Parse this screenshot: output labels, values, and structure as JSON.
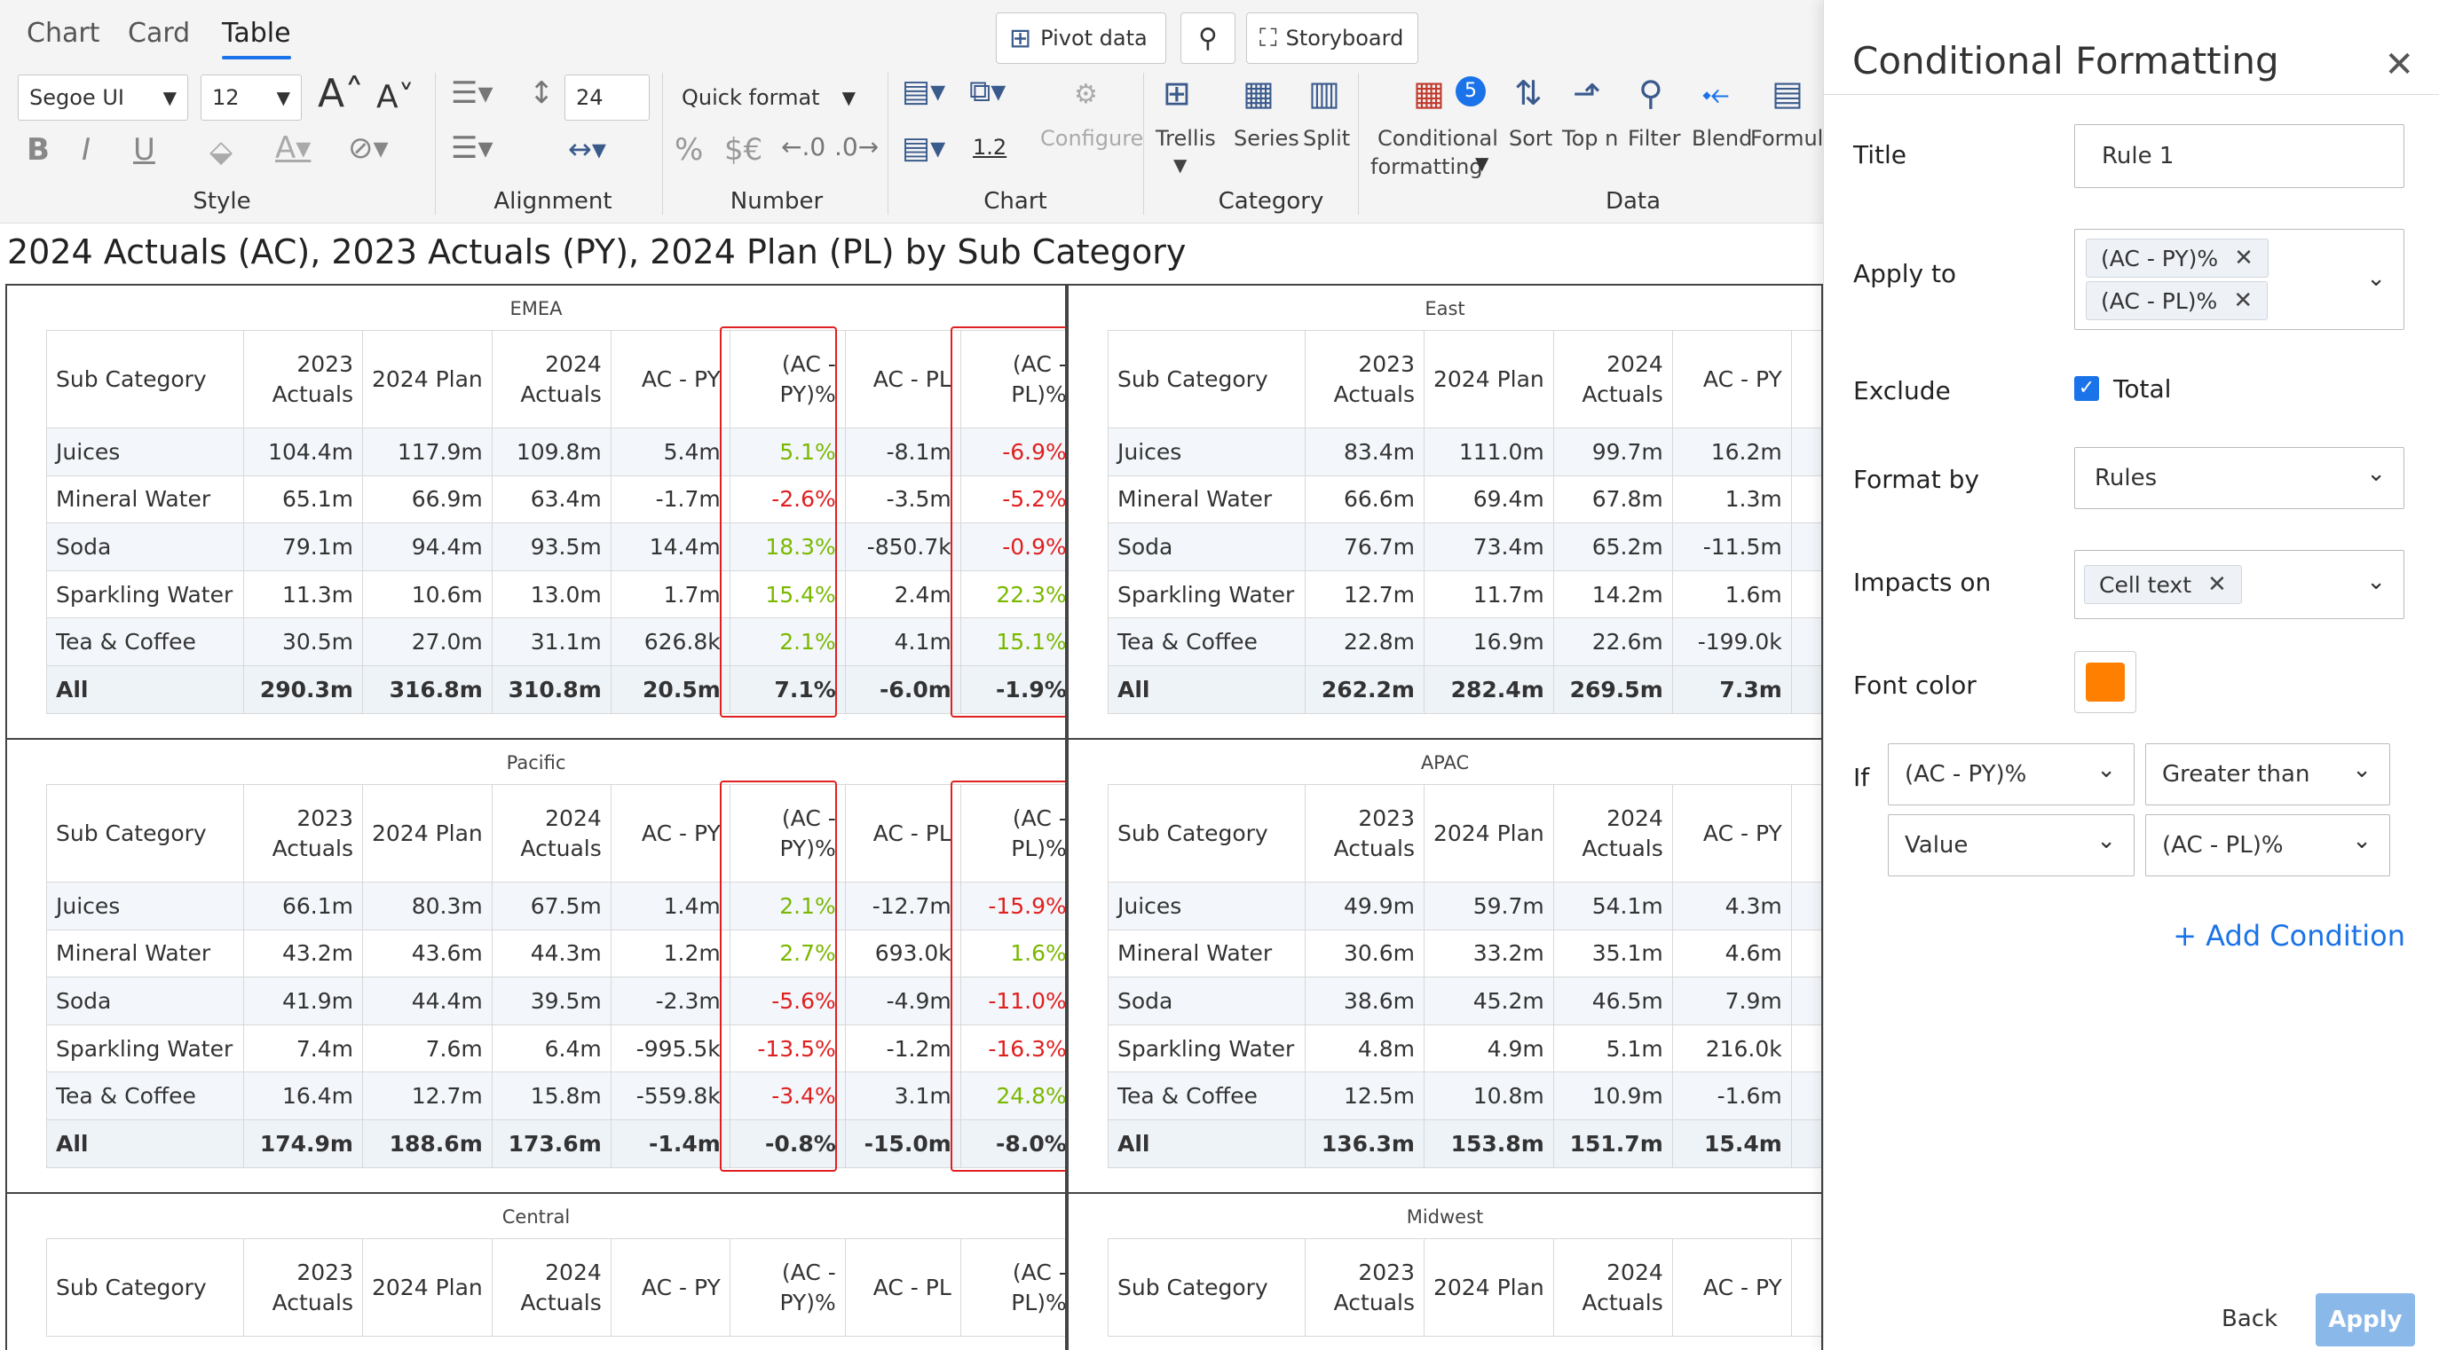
{
  "ribbon": {
    "tabs": [
      "Chart",
      "Card",
      "Table"
    ],
    "buttons": {
      "pivot": "Pivot data",
      "storyboard": "Storyboard"
    },
    "font_family": "Segoe UI",
    "font_size": "12",
    "line_height": "24",
    "quick_format": "Quick format",
    "decimal_value": "1.2",
    "groups": {
      "style": "Style",
      "alignment": "Alignment",
      "number": "Number",
      "chart": "Chart",
      "category": "Category",
      "data": "Data"
    },
    "chart_configure": "Configure",
    "category_buttons": {
      "trellis": "Trellis",
      "series": "Series",
      "split": "Split"
    },
    "data_buttons": {
      "cond_line1": "Conditional",
      "cond_line2": "formatting",
      "cond_badge": "5",
      "sort": "Sort",
      "topn": "Top n",
      "filter": "Filter",
      "blend": "Blend",
      "formula": "Formula"
    }
  },
  "report_title": "2024 Actuals (AC), 2023 Actuals (PY), 2024 Plan (PL) by Sub Category",
  "table_headers": {
    "sub": "Sub Category",
    "py1": "2023",
    "py2": "Actuals",
    "pl": "2024 Plan",
    "ac1": "2024",
    "ac2": "Actuals",
    "acpy": "AC - PY",
    "acpypct1": "(AC -",
    "acpypct2": "PY)%",
    "acpl": "AC - PL",
    "acplpct1": "(AC -",
    "acplpct2": "PL)%"
  },
  "panels": [
    {
      "title": "EMEA",
      "rows": [
        [
          "Juices",
          "104.4m",
          "117.9m",
          "109.8m",
          "5.4m",
          "5.1%",
          "-8.1m",
          "-6.9%"
        ],
        [
          "Mineral Water",
          "65.1m",
          "66.9m",
          "63.4m",
          "-1.7m",
          "-2.6%",
          "-3.5m",
          "-5.2%"
        ],
        [
          "Soda",
          "79.1m",
          "94.4m",
          "93.5m",
          "14.4m",
          "18.3%",
          "-850.7k",
          "-0.9%"
        ],
        [
          "Sparkling Water",
          "11.3m",
          "10.6m",
          "13.0m",
          "1.7m",
          "15.4%",
          "2.4m",
          "22.3%"
        ],
        [
          "Tea & Coffee",
          "30.5m",
          "27.0m",
          "31.1m",
          "626.8k",
          "2.1%",
          "4.1m",
          "15.1%"
        ],
        [
          "All",
          "290.3m",
          "316.8m",
          "310.8m",
          "20.5m",
          "7.1%",
          "-6.0m",
          "-1.9%"
        ]
      ]
    },
    {
      "title": "East",
      "rows": [
        [
          "Juices",
          "83.4m",
          "111.0m",
          "99.7m",
          "16.2m"
        ],
        [
          "Mineral Water",
          "66.6m",
          "69.4m",
          "67.8m",
          "1.3m"
        ],
        [
          "Soda",
          "76.7m",
          "73.4m",
          "65.2m",
          "-11.5m"
        ],
        [
          "Sparkling Water",
          "12.7m",
          "11.7m",
          "14.2m",
          "1.6m"
        ],
        [
          "Tea & Coffee",
          "22.8m",
          "16.9m",
          "22.6m",
          "-199.0k"
        ],
        [
          "All",
          "262.2m",
          "282.4m",
          "269.5m",
          "7.3m"
        ]
      ]
    },
    {
      "title": "Pacific",
      "rows": [
        [
          "Juices",
          "66.1m",
          "80.3m",
          "67.5m",
          "1.4m",
          "2.1%",
          "-12.7m",
          "-15.9%"
        ],
        [
          "Mineral Water",
          "43.2m",
          "43.6m",
          "44.3m",
          "1.2m",
          "2.7%",
          "693.0k",
          "1.6%"
        ],
        [
          "Soda",
          "41.9m",
          "44.4m",
          "39.5m",
          "-2.3m",
          "-5.6%",
          "-4.9m",
          "-11.0%"
        ],
        [
          "Sparkling Water",
          "7.4m",
          "7.6m",
          "6.4m",
          "-995.5k",
          "-13.5%",
          "-1.2m",
          "-16.3%"
        ],
        [
          "Tea & Coffee",
          "16.4m",
          "12.7m",
          "15.8m",
          "-559.8k",
          "-3.4%",
          "3.1m",
          "24.8%"
        ],
        [
          "All",
          "174.9m",
          "188.6m",
          "173.6m",
          "-1.4m",
          "-0.8%",
          "-15.0m",
          "-8.0%"
        ]
      ]
    },
    {
      "title": "APAC",
      "rows": [
        [
          "Juices",
          "49.9m",
          "59.7m",
          "54.1m",
          "4.3m"
        ],
        [
          "Mineral Water",
          "30.6m",
          "33.2m",
          "35.1m",
          "4.6m"
        ],
        [
          "Soda",
          "38.6m",
          "45.2m",
          "46.5m",
          "7.9m"
        ],
        [
          "Sparkling Water",
          "4.8m",
          "4.9m",
          "5.1m",
          "216.0k"
        ],
        [
          "Tea & Coffee",
          "12.5m",
          "10.8m",
          "10.9m",
          "-1.6m"
        ],
        [
          "All",
          "136.3m",
          "153.8m",
          "151.7m",
          "15.4m"
        ]
      ]
    },
    {
      "title": "Central",
      "rows": []
    },
    {
      "title": "Midwest",
      "rows": []
    }
  ],
  "side_panel": {
    "title": "Conditional Formatting",
    "title_label": "Title",
    "title_value": "Rule 1",
    "apply_to_label": "Apply to",
    "apply_to_chips": [
      "(AC - PY)%",
      "(AC - PL)%"
    ],
    "exclude_label": "Exclude",
    "exclude_option": "Total",
    "exclude_checked": true,
    "format_by_label": "Format by",
    "format_by_value": "Rules",
    "impacts_label": "Impacts on",
    "impacts_chips": [
      "Cell text"
    ],
    "font_color_label": "Font color",
    "font_color": "#ff8000",
    "if_label": "If",
    "cond_field": "(AC - PY)%",
    "cond_operator": "Greater than",
    "cond_type": "Value",
    "cond_value": "(AC - PL)%",
    "add_condition": "+ Add Condition",
    "back": "Back",
    "apply": "Apply"
  },
  "colors": {
    "positive": "#7ab800",
    "negative": "#e02020",
    "accent": "#1a73e8",
    "highlight": "#e02020",
    "apply_button": "#8ab8e8"
  }
}
